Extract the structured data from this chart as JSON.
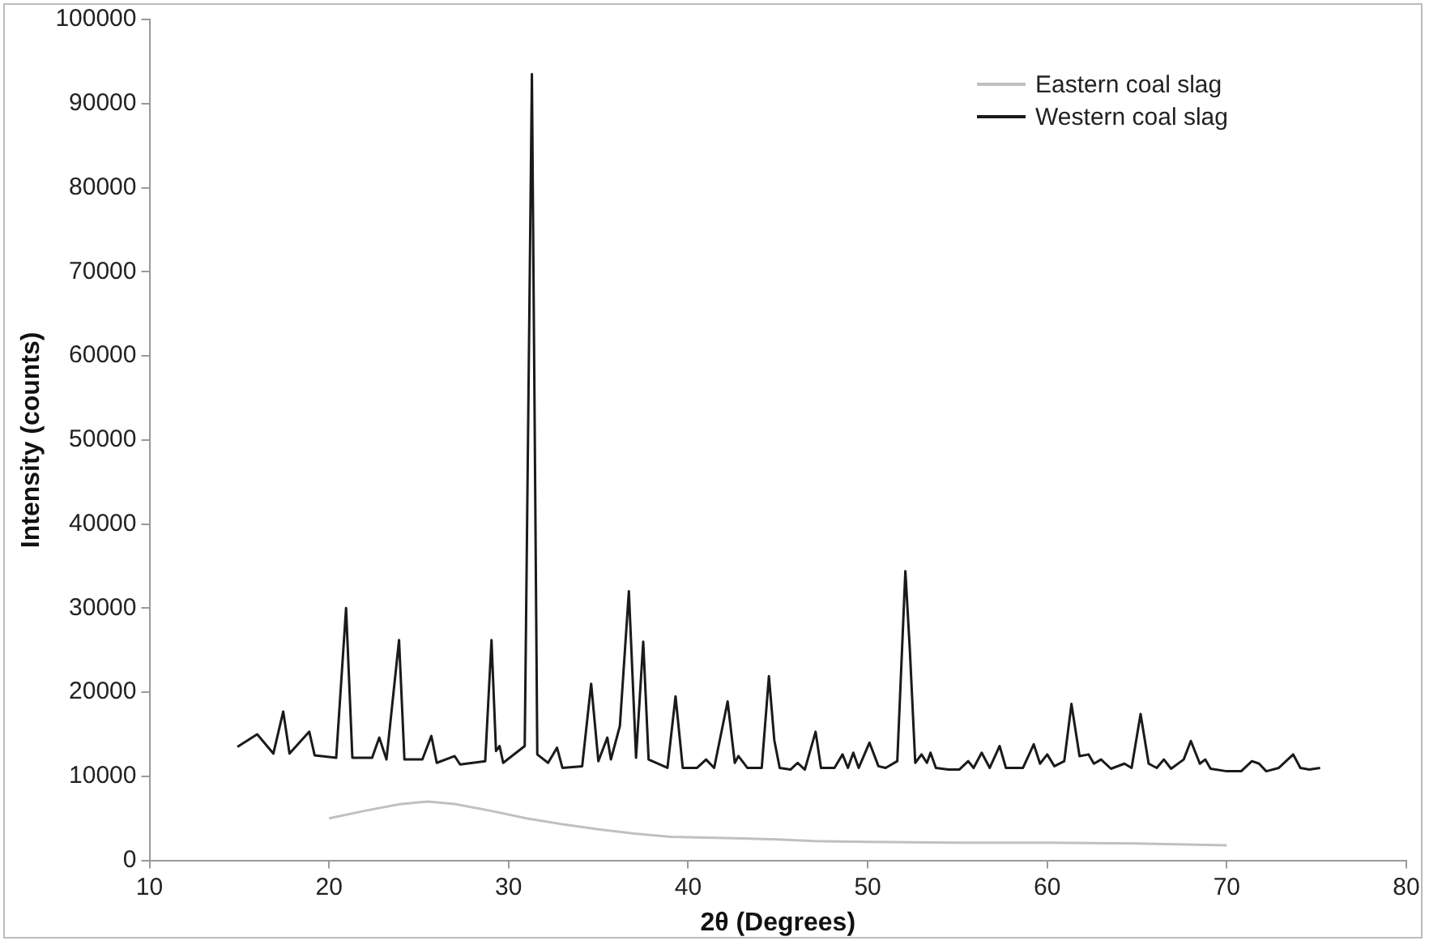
{
  "chart_data": {
    "type": "line",
    "xlabel": "2θ (Degrees)",
    "ylabel": "Intensity (counts)",
    "xlim": [
      10,
      80
    ],
    "xticks": [
      10,
      20,
      30,
      40,
      50,
      60,
      70,
      80
    ],
    "ylim": [
      0,
      100000
    ],
    "yticks": [
      0,
      10000,
      20000,
      30000,
      40000,
      50000,
      60000,
      70000,
      80000,
      90000,
      100000
    ],
    "grid": false,
    "legend": "top right",
    "marker": "none",
    "series": [
      {
        "name": "Eastern coal slag",
        "color": "#c0c0c0",
        "x": [
          20,
          22,
          24,
          25.5,
          27,
          29,
          31,
          33,
          35,
          37,
          39,
          41,
          43,
          45,
          47,
          50,
          55,
          60,
          65,
          70
        ],
        "values": [
          5000,
          5900,
          6700,
          7000,
          6700,
          5900,
          5000,
          4300,
          3700,
          3200,
          2800,
          2700,
          2600,
          2500,
          2300,
          2200,
          2100,
          2100,
          2000,
          1800
        ]
      },
      {
        "name": "Western coal slag",
        "color": "#1a1a1a",
        "x": [
          14.9,
          16.0,
          16.9,
          17.45,
          17.8,
          18.9,
          19.2,
          20.4,
          20.95,
          21.3,
          22.4,
          22.8,
          23.2,
          23.9,
          24.2,
          25.2,
          25.7,
          26.0,
          27.0,
          27.3,
          28.7,
          29.05,
          29.3,
          29.5,
          29.7,
          30.9,
          31.3,
          31.6,
          32.2,
          32.7,
          33.0,
          34.1,
          34.6,
          35.0,
          35.5,
          35.7,
          36.2,
          36.7,
          37.1,
          37.5,
          37.8,
          38.85,
          39.3,
          39.7,
          40.5,
          41.0,
          41.45,
          42.2,
          42.6,
          42.8,
          43.3,
          44.1,
          44.5,
          44.8,
          45.1,
          45.7,
          46.1,
          46.5,
          47.1,
          47.4,
          48.15,
          48.6,
          48.9,
          49.2,
          49.5,
          50.1,
          50.6,
          51.0,
          51.65,
          52.1,
          52.35,
          52.65,
          53.0,
          53.3,
          53.5,
          53.8,
          54.5,
          55.1,
          55.6,
          55.9,
          56.35,
          56.8,
          57.35,
          57.7,
          58.65,
          59.25,
          59.6,
          60.0,
          60.4,
          60.95,
          61.35,
          61.8,
          62.3,
          62.6,
          63.0,
          63.55,
          64.3,
          64.7,
          65.2,
          65.65,
          66.1,
          66.5,
          66.9,
          67.6,
          68.0,
          68.5,
          68.8,
          69.1,
          70.0,
          70.8,
          71.4,
          71.8,
          72.2,
          72.9,
          73.7,
          74.1,
          74.6,
          75.2
        ],
        "values": [
          13500,
          15000,
          12700,
          17700,
          12700,
          15300,
          12500,
          12200,
          30000,
          12200,
          12200,
          14600,
          12000,
          26200,
          12000,
          12000,
          14800,
          11600,
          12400,
          11400,
          11800,
          26200,
          13000,
          13600,
          11600,
          13600,
          93500,
          12600,
          11600,
          13400,
          11000,
          11200,
          21000,
          11800,
          14600,
          12000,
          16000,
          32000,
          12200,
          26000,
          12000,
          11000,
          19500,
          11000,
          11000,
          12000,
          11000,
          18900,
          11600,
          12400,
          11000,
          11000,
          21900,
          14300,
          11000,
          10800,
          11600,
          10800,
          15300,
          11000,
          11000,
          12600,
          11000,
          12800,
          11000,
          14000,
          11200,
          11000,
          11800,
          34400,
          25000,
          11600,
          12600,
          11600,
          12800,
          11000,
          10800,
          10800,
          11800,
          11000,
          12800,
          11000,
          13600,
          11000,
          11000,
          13800,
          11500,
          12600,
          11200,
          11800,
          18600,
          12400,
          12600,
          11500,
          12000,
          10900,
          11500,
          11000,
          17400,
          11500,
          11000,
          12000,
          10900,
          12000,
          14200,
          11500,
          12000,
          10900,
          10600,
          10600,
          11800,
          11500,
          10600,
          11000,
          12600,
          11000,
          10800,
          11000
        ]
      }
    ]
  }
}
